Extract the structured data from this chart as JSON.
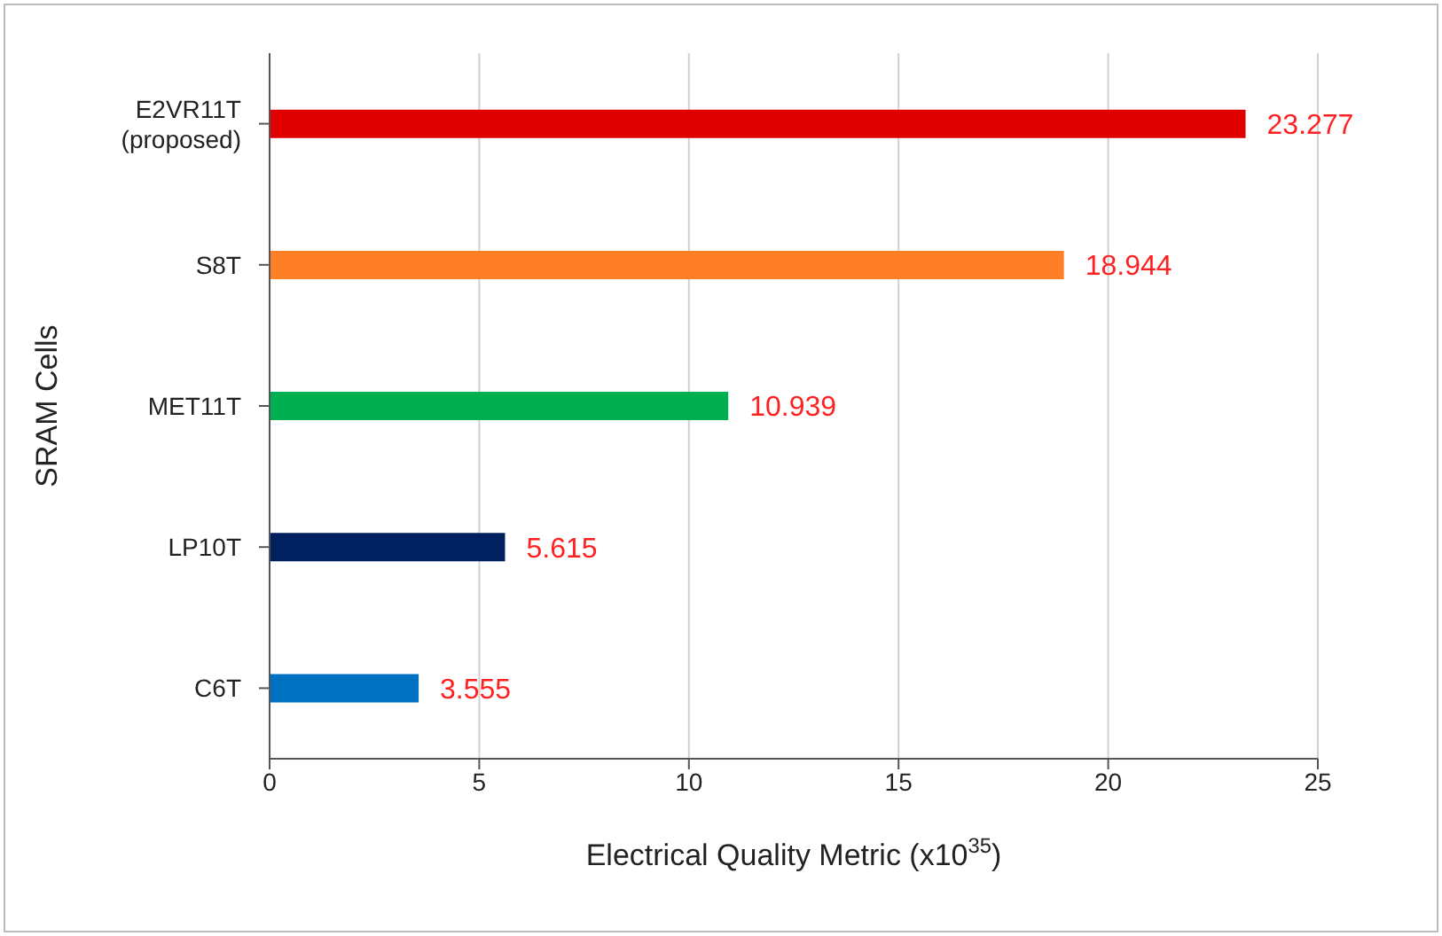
{
  "chart_data": {
    "type": "bar",
    "orientation": "horizontal",
    "xlabel": "Electrical Quality Metric (x10$^{35}$)",
    "ylabel": "SRAM Cells",
    "categories": [
      "E2VR11T (proposed)",
      "S8T",
      "MET11T",
      "LP10T",
      "C6T"
    ],
    "values": [
      23.277,
      18.944,
      10.939,
      5.615,
      3.555
    ],
    "colors": [
      "#e00000",
      "#ff7f27",
      "#00b050",
      "#002060",
      "#0070c0"
    ],
    "xlim": [
      0,
      25
    ],
    "xticks": [
      0,
      5,
      10,
      15,
      20,
      25
    ],
    "grid": "x",
    "data_labels": true
  }
}
